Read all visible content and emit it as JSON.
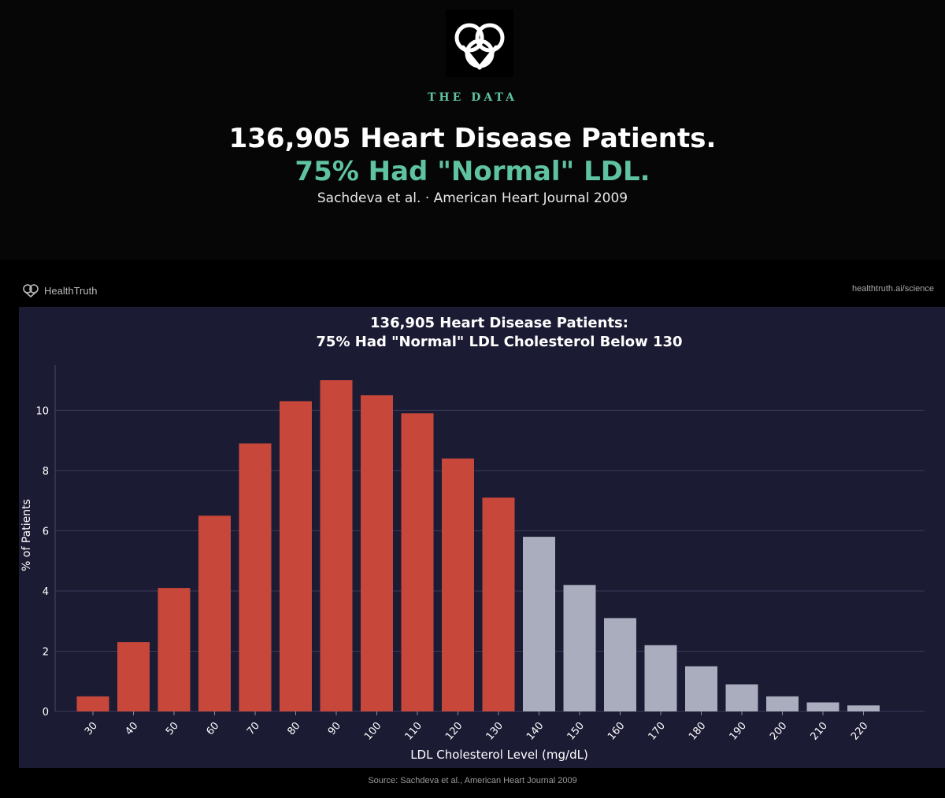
{
  "header": {
    "eyebrow": "THE DATA",
    "headline_line1": "136,905 Heart Disease Patients.",
    "headline_line2": "75% Had \"Normal\" LDL.",
    "citation": "Sachdeva et al. · American Heart Journal 2009",
    "accent_color": "#5fc3a0",
    "logo_icon": "knot-heart-icon"
  },
  "card": {
    "brand_name": "HealthTruth",
    "brand_icon": "knot-heart-icon",
    "site_url": "healthtruth.ai/science",
    "source_note": "Source: Sachdeva et al., American Heart Journal 2009"
  },
  "chart_data": {
    "type": "bar",
    "title_line1": "136,905 Heart Disease Patients:",
    "title_line2": "75% Had \"Normal\" LDL Cholesterol Below 130",
    "xlabel": "LDL Cholesterol Level (mg/dL)",
    "ylabel": "% of Patients",
    "categories": [
      "30",
      "40",
      "50",
      "60",
      "70",
      "80",
      "90",
      "100",
      "110",
      "120",
      "130",
      "140",
      "150",
      "160",
      "170",
      "180",
      "190",
      "200",
      "210",
      "220"
    ],
    "values": [
      0.5,
      2.3,
      4.1,
      6.5,
      8.9,
      10.3,
      11.0,
      10.5,
      9.9,
      8.4,
      7.1,
      5.8,
      4.2,
      3.1,
      2.2,
      1.5,
      0.9,
      0.5,
      0.3,
      0.2
    ],
    "ylim": [
      0,
      11.5
    ],
    "yticks": [
      0,
      2,
      4,
      6,
      8,
      10
    ],
    "grid": true,
    "colors": {
      "below_130": "#c8473b",
      "above_130": "#a9adbd",
      "background": "#1c1b34",
      "grid": "#3b3a58"
    }
  }
}
